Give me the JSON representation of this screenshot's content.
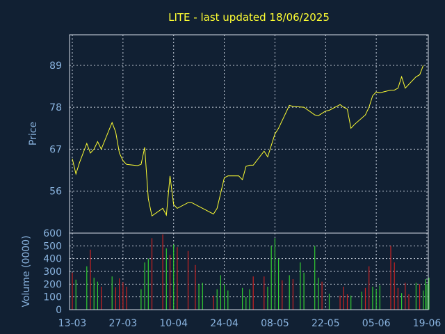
{
  "chart_data": [
    {
      "type": "line",
      "title": "LITE - last updated 18/06/2025",
      "ylabel": "Price",
      "ylim": [
        45,
        97
      ],
      "yticks": [
        56,
        67,
        78,
        89
      ],
      "grid": true,
      "x_start": "2025-03-13",
      "x_end": "2025-06-19",
      "xtick_labels": [
        "13-03",
        "27-03",
        "10-04",
        "24-04",
        "08-05",
        "22-05",
        "05-06",
        "19-06"
      ],
      "series": [
        {
          "color": "#ffff33",
          "x": [
            "2025-03-13",
            "2025-03-14",
            "2025-03-15",
            "2025-03-17",
            "2025-03-18",
            "2025-03-19",
            "2025-03-20",
            "2025-03-21",
            "2025-03-24",
            "2025-03-25",
            "2025-03-26",
            "2025-03-27",
            "2025-03-28",
            "2025-03-31",
            "2025-04-01",
            "2025-04-02",
            "2025-04-03",
            "2025-04-04",
            "2025-04-07",
            "2025-04-08",
            "2025-04-09",
            "2025-04-10",
            "2025-04-11",
            "2025-04-14",
            "2025-04-15",
            "2025-04-21",
            "2025-04-22",
            "2025-04-23",
            "2025-04-24",
            "2025-04-25",
            "2025-04-28",
            "2025-04-29",
            "2025-04-30",
            "2025-05-01",
            "2025-05-02",
            "2025-05-05",
            "2025-05-06",
            "2025-05-07",
            "2025-05-08",
            "2025-05-09",
            "2025-05-12",
            "2025-05-13",
            "2025-05-16",
            "2025-05-19",
            "2025-05-20",
            "2025-05-22",
            "2025-05-23",
            "2025-05-26",
            "2025-05-27",
            "2025-05-28",
            "2025-05-29",
            "2025-05-30",
            "2025-06-02",
            "2025-06-03",
            "2025-06-04",
            "2025-06-05",
            "2025-06-06",
            "2025-06-09",
            "2025-06-10",
            "2025-06-11",
            "2025-06-12",
            "2025-06-13",
            "2025-06-16",
            "2025-06-17",
            "2025-06-18"
          ],
          "values": [
            64.5,
            60.5,
            63.5,
            68.5,
            66.0,
            67.0,
            69.0,
            67.0,
            74.0,
            71.5,
            66.0,
            64.0,
            63.0,
            62.7,
            63.0,
            67.5,
            54.0,
            49.5,
            51.5,
            49.7,
            60.0,
            52.5,
            51.5,
            53.0,
            53.0,
            50.0,
            51.5,
            55.5,
            59.5,
            60.0,
            60.0,
            59.0,
            62.5,
            62.8,
            62.8,
            66.5,
            65.0,
            68.0,
            71.0,
            72.5,
            78.5,
            78.2,
            78.0,
            76.0,
            75.8,
            77.0,
            77.2,
            78.7,
            78.0,
            77.5,
            72.5,
            73.5,
            76.0,
            78.0,
            81.0,
            82.0,
            81.8,
            82.5,
            82.5,
            83.0,
            86.0,
            83.0,
            86.0,
            86.5,
            89.0
          ]
        }
      ]
    },
    {
      "type": "bar",
      "ylabel": "Volume (0000)",
      "ylim": [
        0,
        600
      ],
      "yticks": [
        0,
        100,
        200,
        300,
        400,
        500,
        600
      ],
      "grid": true,
      "x_start": "2025-03-13",
      "x_end": "2025-06-19",
      "colors": {
        "up": "#33cc33",
        "down": "#cc2222"
      },
      "bars": [
        {
          "x": "2025-03-13",
          "value": 290,
          "dir": "down"
        },
        {
          "x": "2025-03-14",
          "value": 235,
          "dir": "up"
        },
        {
          "x": "2025-03-17",
          "value": 340,
          "dir": "up"
        },
        {
          "x": "2025-03-18",
          "value": 470,
          "dir": "down"
        },
        {
          "x": "2025-03-19",
          "value": 250,
          "dir": "up"
        },
        {
          "x": "2025-03-20",
          "value": 220,
          "dir": "up"
        },
        {
          "x": "2025-03-21",
          "value": 180,
          "dir": "down"
        },
        {
          "x": "2025-03-24",
          "value": 260,
          "dir": "up"
        },
        {
          "x": "2025-03-25",
          "value": 175,
          "dir": "down"
        },
        {
          "x": "2025-03-26",
          "value": 245,
          "dir": "down"
        },
        {
          "x": "2025-03-27",
          "value": 215,
          "dir": "down"
        },
        {
          "x": "2025-03-28",
          "value": 180,
          "dir": "down"
        },
        {
          "x": "2025-04-01",
          "value": 160,
          "dir": "up"
        },
        {
          "x": "2025-04-02",
          "value": 370,
          "dir": "up"
        },
        {
          "x": "2025-04-03",
          "value": 400,
          "dir": "up"
        },
        {
          "x": "2025-04-04",
          "value": 560,
          "dir": "down"
        },
        {
          "x": "2025-04-07",
          "value": 590,
          "dir": "down"
        },
        {
          "x": "2025-04-08",
          "value": 480,
          "dir": "up"
        },
        {
          "x": "2025-04-09",
          "value": 430,
          "dir": "down"
        },
        {
          "x": "2025-04-10",
          "value": 510,
          "dir": "up"
        },
        {
          "x": "2025-04-11",
          "value": 490,
          "dir": "down"
        },
        {
          "x": "2025-04-14",
          "value": 460,
          "dir": "down"
        },
        {
          "x": "2025-04-16",
          "value": 350,
          "dir": "down"
        },
        {
          "x": "2025-04-17",
          "value": 200,
          "dir": "up"
        },
        {
          "x": "2025-04-18",
          "value": 210,
          "dir": "up"
        },
        {
          "x": "2025-04-21",
          "value": 110,
          "dir": "down"
        },
        {
          "x": "2025-04-22",
          "value": 160,
          "dir": "up"
        },
        {
          "x": "2025-04-23",
          "value": 270,
          "dir": "up"
        },
        {
          "x": "2025-04-24",
          "value": 200,
          "dir": "up"
        },
        {
          "x": "2025-04-25",
          "value": 150,
          "dir": "up"
        },
        {
          "x": "2025-04-29",
          "value": 170,
          "dir": "up"
        },
        {
          "x": "2025-04-30",
          "value": 100,
          "dir": "up"
        },
        {
          "x": "2025-05-01",
          "value": 160,
          "dir": "up"
        },
        {
          "x": "2025-05-02",
          "value": 260,
          "dir": "down"
        },
        {
          "x": "2025-05-05",
          "value": 260,
          "dir": "down"
        },
        {
          "x": "2025-05-06",
          "value": 180,
          "dir": "up"
        },
        {
          "x": "2025-05-07",
          "value": 500,
          "dir": "up"
        },
        {
          "x": "2025-05-08",
          "value": 560,
          "dir": "up"
        },
        {
          "x": "2025-05-09",
          "value": 400,
          "dir": "up"
        },
        {
          "x": "2025-05-10",
          "value": 230,
          "dir": "down"
        },
        {
          "x": "2025-05-12",
          "value": 270,
          "dir": "up"
        },
        {
          "x": "2025-05-13",
          "value": 240,
          "dir": "down"
        },
        {
          "x": "2025-05-15",
          "value": 370,
          "dir": "up"
        },
        {
          "x": "2025-05-16",
          "value": 290,
          "dir": "up"
        },
        {
          "x": "2025-05-19",
          "value": 500,
          "dir": "up"
        },
        {
          "x": "2025-05-20",
          "value": 250,
          "dir": "up"
        },
        {
          "x": "2025-05-21",
          "value": 220,
          "dir": "down"
        },
        {
          "x": "2025-05-23",
          "value": 125,
          "dir": "up"
        },
        {
          "x": "2025-05-26",
          "value": 110,
          "dir": "down"
        },
        {
          "x": "2025-05-27",
          "value": 180,
          "dir": "down"
        },
        {
          "x": "2025-05-28",
          "value": 120,
          "dir": "down"
        },
        {
          "x": "2025-05-29",
          "value": 110,
          "dir": "up"
        },
        {
          "x": "2025-06-01",
          "value": 140,
          "dir": "up"
        },
        {
          "x": "2025-06-02",
          "value": 170,
          "dir": "down"
        },
        {
          "x": "2025-06-03",
          "value": 340,
          "dir": "down"
        },
        {
          "x": "2025-06-04",
          "value": 180,
          "dir": "up"
        },
        {
          "x": "2025-06-05",
          "value": 160,
          "dir": "up"
        },
        {
          "x": "2025-06-06",
          "value": 190,
          "dir": "up"
        },
        {
          "x": "2025-06-09",
          "value": 500,
          "dir": "down"
        },
        {
          "x": "2025-06-10",
          "value": 370,
          "dir": "down"
        },
        {
          "x": "2025-06-11",
          "value": 170,
          "dir": "down"
        },
        {
          "x": "2025-06-12",
          "value": 130,
          "dir": "up"
        },
        {
          "x": "2025-06-13",
          "value": 210,
          "dir": "down"
        },
        {
          "x": "2025-06-14",
          "value": 120,
          "dir": "down"
        },
        {
          "x": "2025-06-16",
          "value": 210,
          "dir": "up"
        },
        {
          "x": "2025-06-17",
          "value": 200,
          "dir": "down"
        },
        {
          "x": "2025-06-18",
          "value": 150,
          "dir": "up"
        },
        {
          "x": "2025-06-18",
          "value": 240,
          "dir": "up"
        },
        {
          "x": "2025-06-19",
          "value": 200,
          "dir": "up"
        },
        {
          "x": "2025-06-19",
          "value": 250,
          "dir": "up"
        }
      ]
    }
  ]
}
